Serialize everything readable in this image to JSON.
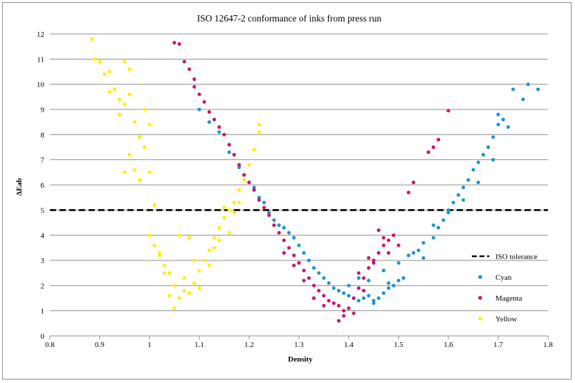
{
  "chart_data": {
    "type": "scatter",
    "title": "ISO 12647-2 conformance of inks from press run",
    "xlabel": "Density",
    "ylabel": "ΔEab",
    "xlim": [
      0.8,
      1.8
    ],
    "ylim": [
      0,
      12
    ],
    "xticks": [
      "0.8",
      "0.9",
      "1",
      "1.1",
      "1.2",
      "1.3",
      "1.4",
      "1.5",
      "1.6",
      "1.7",
      "1.8"
    ],
    "yticks": [
      "0",
      "1",
      "2",
      "3",
      "4",
      "5",
      "6",
      "7",
      "8",
      "9",
      "10",
      "11",
      "12"
    ],
    "grid": "horizontal",
    "legend_position": "right",
    "reference_line": {
      "name": "ISO tolerance",
      "y": 5,
      "style": "dashed",
      "color": "#000000"
    },
    "series": [
      {
        "name": "Cyan",
        "color": "#1f93cf",
        "points": [
          [
            1.1,
            9.0
          ],
          [
            1.12,
            8.5
          ],
          [
            1.14,
            8.1
          ],
          [
            1.16,
            7.3
          ],
          [
            1.18,
            6.7
          ],
          [
            1.19,
            6.4
          ],
          [
            1.2,
            6.1
          ],
          [
            1.21,
            5.9
          ],
          [
            1.22,
            5.5
          ],
          [
            1.23,
            5.3
          ],
          [
            1.24,
            4.9
          ],
          [
            1.25,
            4.6
          ],
          [
            1.26,
            4.4
          ],
          [
            1.27,
            4.3
          ],
          [
            1.28,
            4.1
          ],
          [
            1.29,
            3.9
          ],
          [
            1.3,
            3.6
          ],
          [
            1.31,
            3.3
          ],
          [
            1.32,
            3.0
          ],
          [
            1.33,
            2.7
          ],
          [
            1.34,
            2.5
          ],
          [
            1.35,
            2.3
          ],
          [
            1.36,
            2.1
          ],
          [
            1.37,
            1.9
          ],
          [
            1.38,
            1.8
          ],
          [
            1.39,
            1.7
          ],
          [
            1.4,
            1.6
          ],
          [
            1.41,
            1.5
          ],
          [
            1.42,
            1.4
          ],
          [
            1.43,
            1.5
          ],
          [
            1.44,
            1.6
          ],
          [
            1.45,
            1.4
          ],
          [
            1.46,
            1.5
          ],
          [
            1.47,
            1.7
          ],
          [
            1.48,
            1.9
          ],
          [
            1.49,
            2.0
          ],
          [
            1.5,
            2.2
          ],
          [
            1.51,
            2.3
          ],
          [
            1.42,
            2.3
          ],
          [
            1.44,
            2.2
          ],
          [
            1.47,
            2.6
          ],
          [
            1.5,
            2.9
          ],
          [
            1.52,
            3.2
          ],
          [
            1.54,
            3.4
          ],
          [
            1.55,
            3.7
          ],
          [
            1.57,
            3.9
          ],
          [
            1.58,
            4.3
          ],
          [
            1.59,
            4.6
          ],
          [
            1.6,
            4.9
          ],
          [
            1.61,
            5.3
          ],
          [
            1.62,
            5.6
          ],
          [
            1.63,
            5.9
          ],
          [
            1.64,
            6.2
          ],
          [
            1.65,
            6.6
          ],
          [
            1.66,
            6.9
          ],
          [
            1.67,
            7.2
          ],
          [
            1.68,
            7.5
          ],
          [
            1.69,
            7.9
          ],
          [
            1.7,
            8.4
          ],
          [
            1.71,
            8.6
          ],
          [
            1.72,
            8.3
          ],
          [
            1.75,
            9.4
          ],
          [
            1.76,
            10.0
          ],
          [
            1.78,
            9.8
          ],
          [
            1.57,
            4.4
          ],
          [
            1.6,
            5.0
          ],
          [
            1.63,
            5.4
          ],
          [
            1.66,
            6.1
          ],
          [
            1.69,
            7.0
          ],
          [
            1.7,
            8.8
          ],
          [
            1.73,
            9.8
          ],
          [
            1.55,
            3.1
          ],
          [
            1.53,
            3.3
          ],
          [
            1.48,
            2.1
          ],
          [
            1.45,
            1.3
          ],
          [
            1.4,
            2.0
          ]
        ]
      },
      {
        "name": "Magenta",
        "color": "#c7176e",
        "points": [
          [
            1.05,
            11.65
          ],
          [
            1.06,
            11.6
          ],
          [
            1.07,
            10.9
          ],
          [
            1.08,
            10.6
          ],
          [
            1.09,
            10.2
          ],
          [
            1.09,
            9.9
          ],
          [
            1.1,
            9.6
          ],
          [
            1.11,
            9.3
          ],
          [
            1.12,
            8.9
          ],
          [
            1.13,
            8.6
          ],
          [
            1.14,
            8.3
          ],
          [
            1.15,
            8.0
          ],
          [
            1.16,
            7.6
          ],
          [
            1.17,
            7.2
          ],
          [
            1.18,
            6.8
          ],
          [
            1.19,
            6.4
          ],
          [
            1.2,
            6.1
          ],
          [
            1.21,
            5.8
          ],
          [
            1.22,
            5.4
          ],
          [
            1.23,
            5.1
          ],
          [
            1.24,
            4.8
          ],
          [
            1.25,
            4.4
          ],
          [
            1.26,
            4.1
          ],
          [
            1.27,
            3.8
          ],
          [
            1.28,
            3.5
          ],
          [
            1.29,
            3.2
          ],
          [
            1.3,
            2.9
          ],
          [
            1.31,
            2.6
          ],
          [
            1.32,
            2.3
          ],
          [
            1.33,
            2.0
          ],
          [
            1.34,
            1.8
          ],
          [
            1.35,
            1.6
          ],
          [
            1.36,
            1.4
          ],
          [
            1.37,
            1.3
          ],
          [
            1.38,
            1.2
          ],
          [
            1.39,
            1.0
          ],
          [
            1.38,
            0.6
          ],
          [
            1.39,
            0.8
          ],
          [
            1.4,
            1.1
          ],
          [
            1.41,
            1.5
          ],
          [
            1.42,
            1.9
          ],
          [
            1.43,
            2.3
          ],
          [
            1.44,
            2.7
          ],
          [
            1.45,
            3.0
          ],
          [
            1.46,
            3.3
          ],
          [
            1.47,
            3.6
          ],
          [
            1.48,
            3.8
          ],
          [
            1.49,
            4.0
          ],
          [
            1.46,
            4.2
          ],
          [
            1.47,
            3.9
          ],
          [
            1.44,
            3.1
          ],
          [
            1.42,
            2.5
          ],
          [
            1.5,
            3.6
          ],
          [
            1.52,
            5.7
          ],
          [
            1.53,
            6.1
          ],
          [
            1.56,
            7.3
          ],
          [
            1.57,
            7.5
          ],
          [
            1.58,
            7.8
          ],
          [
            1.6,
            8.95
          ],
          [
            1.35,
            1.2
          ],
          [
            1.33,
            1.5
          ],
          [
            1.31,
            2.2
          ],
          [
            1.29,
            2.8
          ],
          [
            1.27,
            3.3
          ],
          [
            1.41,
            0.9
          ],
          [
            1.43,
            1.8
          ],
          [
            1.45,
            2.9
          ],
          [
            1.48,
            3.3
          ]
        ]
      },
      {
        "name": "Yellow",
        "color": "#ffef00",
        "points": [
          [
            0.885,
            11.8
          ],
          [
            0.89,
            11.0
          ],
          [
            0.9,
            10.9
          ],
          [
            0.91,
            10.4
          ],
          [
            0.92,
            10.5
          ],
          [
            0.93,
            9.8
          ],
          [
            0.94,
            9.4
          ],
          [
            0.95,
            9.2
          ],
          [
            0.96,
            9.6
          ],
          [
            0.95,
            10.9
          ],
          [
            0.96,
            10.6
          ],
          [
            0.97,
            8.5
          ],
          [
            0.98,
            7.9
          ],
          [
            0.99,
            7.5
          ],
          [
            1.0,
            6.5
          ],
          [
            1.01,
            5.2
          ],
          [
            0.99,
            9.0
          ],
          [
            1.0,
            8.4
          ],
          [
            1.0,
            4.0
          ],
          [
            1.01,
            3.6
          ],
          [
            1.02,
            3.3
          ],
          [
            1.03,
            2.8
          ],
          [
            1.04,
            2.5
          ],
          [
            1.05,
            2.0
          ],
          [
            1.06,
            1.5
          ],
          [
            1.07,
            1.8
          ],
          [
            1.08,
            1.7
          ],
          [
            1.09,
            2.1
          ],
          [
            1.1,
            2.6
          ],
          [
            1.11,
            3.0
          ],
          [
            1.12,
            3.4
          ],
          [
            1.13,
            3.9
          ],
          [
            1.14,
            4.3
          ],
          [
            1.15,
            4.7
          ],
          [
            1.16,
            5.0
          ],
          [
            1.17,
            5.3
          ],
          [
            1.18,
            5.8
          ],
          [
            1.19,
            6.2
          ],
          [
            1.2,
            6.8
          ],
          [
            1.21,
            7.4
          ],
          [
            1.22,
            8.1
          ],
          [
            1.22,
            8.4
          ],
          [
            0.96,
            7.2
          ],
          [
            0.97,
            6.6
          ],
          [
            0.98,
            6.2
          ],
          [
            1.05,
            1.1
          ],
          [
            1.06,
            4.0
          ],
          [
            1.08,
            3.9
          ],
          [
            1.09,
            3.0
          ],
          [
            1.12,
            2.8
          ],
          [
            1.14,
            3.8
          ],
          [
            1.16,
            4.1
          ],
          [
            1.18,
            5.3
          ],
          [
            0.92,
            9.7
          ],
          [
            0.94,
            8.8
          ],
          [
            1.03,
            2.5
          ],
          [
            1.07,
            2.3
          ],
          [
            1.1,
            1.9
          ],
          [
            1.13,
            3.5
          ],
          [
            1.15,
            5.1
          ],
          [
            1.17,
            4.9
          ],
          [
            0.95,
            6.5
          ],
          [
            1.02,
            3.2
          ],
          [
            1.04,
            1.6
          ]
        ]
      }
    ]
  }
}
